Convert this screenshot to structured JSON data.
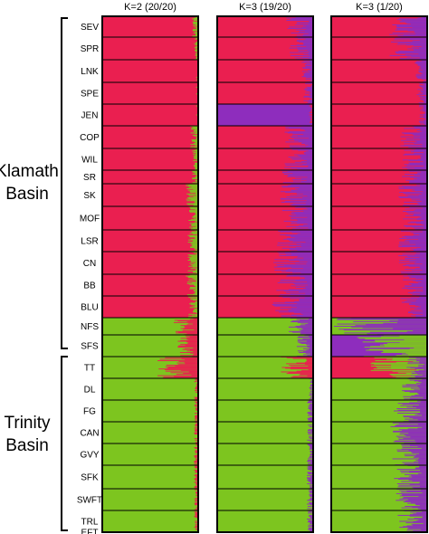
{
  "chart_data": {
    "type": "bar",
    "description_free": true,
    "colors": {
      "red": "#ea1f50",
      "green": "#7dc51f",
      "purple": "#8e2dbd",
      "grid": "#000000"
    },
    "panels": [
      {
        "title": "K=2 (20/20)",
        "k": 2
      },
      {
        "title": "K=3 (19/20)",
        "k": 3
      },
      {
        "title": "K=3 (1/20)",
        "k": 3
      }
    ],
    "basins": [
      {
        "lines": [
          "Klamath",
          "Basin"
        ],
        "populations": [
          "SEV",
          "SPR",
          "LNK",
          "SPE",
          "JEN",
          "COP",
          "WIL",
          "SR",
          "SK",
          "MOF",
          "LSR",
          "CN",
          "BB",
          "BLU",
          "NFS",
          "SFS"
        ]
      },
      {
        "lines": [
          "Trinity",
          "Basin"
        ],
        "populations": [
          "TT",
          "DL",
          "FG",
          "CAN",
          "GVY",
          "SFK",
          "SWFT",
          "TRL",
          "EFT"
        ]
      }
    ],
    "populations": [
      {
        "name": "SEV",
        "membership": [
          [
            0.97,
            0.03,
            0.0
          ],
          [
            0.86,
            0.0,
            0.14
          ],
          [
            0.82,
            0.0,
            0.18
          ]
        ]
      },
      {
        "name": "SPR",
        "membership": [
          [
            0.98,
            0.02,
            0.0
          ],
          [
            0.88,
            0.0,
            0.12
          ],
          [
            0.82,
            0.0,
            0.18
          ]
        ]
      },
      {
        "name": "LNK",
        "membership": [
          [
            0.99,
            0.01,
            0.0
          ],
          [
            0.94,
            0.0,
            0.06
          ],
          [
            0.94,
            0.0,
            0.06
          ]
        ]
      },
      {
        "name": "SPE",
        "membership": [
          [
            0.99,
            0.01,
            0.0
          ],
          [
            0.95,
            0.0,
            0.05
          ],
          [
            0.95,
            0.0,
            0.05
          ]
        ]
      },
      {
        "name": "JEN",
        "membership": [
          [
            0.99,
            0.01,
            0.0
          ],
          [
            0.02,
            0.0,
            0.98
          ],
          [
            0.96,
            0.0,
            0.04
          ]
        ]
      },
      {
        "name": "COP",
        "membership": [
          [
            0.96,
            0.04,
            0.0
          ],
          [
            0.86,
            0.0,
            0.14
          ],
          [
            0.86,
            0.0,
            0.14
          ]
        ]
      },
      {
        "name": "WIL",
        "membership": [
          [
            0.97,
            0.03,
            0.0
          ],
          [
            0.85,
            0.0,
            0.15
          ],
          [
            0.88,
            0.0,
            0.12
          ]
        ]
      },
      {
        "name": "SR",
        "membership": [
          [
            0.97,
            0.03,
            0.0
          ],
          [
            0.85,
            0.0,
            0.15
          ],
          [
            0.88,
            0.0,
            0.12
          ]
        ]
      },
      {
        "name": "SK",
        "membership": [
          [
            0.94,
            0.06,
            0.0
          ],
          [
            0.84,
            0.0,
            0.16
          ],
          [
            0.86,
            0.0,
            0.14
          ]
        ]
      },
      {
        "name": "MOF",
        "membership": [
          [
            0.95,
            0.05,
            0.0
          ],
          [
            0.85,
            0.0,
            0.15
          ],
          [
            0.88,
            0.0,
            0.12
          ]
        ]
      },
      {
        "name": "LSR",
        "membership": [
          [
            0.95,
            0.05,
            0.0
          ],
          [
            0.82,
            0.0,
            0.18
          ],
          [
            0.86,
            0.0,
            0.14
          ]
        ]
      },
      {
        "name": "CN",
        "membership": [
          [
            0.95,
            0.05,
            0.0
          ],
          [
            0.8,
            0.0,
            0.2
          ],
          [
            0.86,
            0.0,
            0.14
          ]
        ]
      },
      {
        "name": "BB",
        "membership": [
          [
            0.94,
            0.06,
            0.0
          ],
          [
            0.82,
            0.0,
            0.18
          ],
          [
            0.88,
            0.0,
            0.12
          ]
        ]
      },
      {
        "name": "BLU",
        "membership": [
          [
            0.95,
            0.05,
            0.0
          ],
          [
            0.8,
            0.0,
            0.2
          ],
          [
            0.86,
            0.0,
            0.14
          ]
        ]
      },
      {
        "name": "NFS",
        "membership": [
          [
            0.12,
            0.88,
            0.0
          ],
          [
            0.0,
            0.88,
            0.12
          ],
          [
            0.0,
            0.55,
            0.45
          ]
        ]
      },
      {
        "name": "SFS",
        "membership": [
          [
            0.1,
            0.9,
            0.0
          ],
          [
            0.0,
            0.92,
            0.08
          ],
          [
            0.0,
            0.35,
            0.65
          ]
        ]
      },
      {
        "name": "TT",
        "membership": [
          [
            0.2,
            0.8,
            0.0
          ],
          [
            0.16,
            0.84,
            0.0
          ],
          [
            0.6,
            0.3,
            0.1
          ]
        ]
      },
      {
        "name": "DL",
        "membership": [
          [
            0.02,
            0.98,
            0.0
          ],
          [
            0.0,
            0.98,
            0.02
          ],
          [
            0.0,
            0.88,
            0.12
          ]
        ]
      },
      {
        "name": "FG",
        "membership": [
          [
            0.02,
            0.98,
            0.0
          ],
          [
            0.0,
            0.97,
            0.03
          ],
          [
            0.0,
            0.84,
            0.16
          ]
        ]
      },
      {
        "name": "CAN",
        "membership": [
          [
            0.02,
            0.98,
            0.0
          ],
          [
            0.0,
            0.97,
            0.03
          ],
          [
            0.0,
            0.82,
            0.18
          ]
        ]
      },
      {
        "name": "GVY",
        "membership": [
          [
            0.02,
            0.98,
            0.0
          ],
          [
            0.0,
            0.97,
            0.03
          ],
          [
            0.0,
            0.82,
            0.18
          ]
        ]
      },
      {
        "name": "SFK",
        "membership": [
          [
            0.02,
            0.98,
            0.0
          ],
          [
            0.0,
            0.97,
            0.03
          ],
          [
            0.0,
            0.84,
            0.16
          ]
        ]
      },
      {
        "name": "SWFT",
        "membership": [
          [
            0.02,
            0.98,
            0.0
          ],
          [
            0.0,
            0.97,
            0.03
          ],
          [
            0.0,
            0.85,
            0.15
          ]
        ]
      },
      {
        "name": "TRL",
        "membership": [
          [
            0.02,
            0.98,
            0.0
          ],
          [
            0.0,
            0.97,
            0.03
          ],
          [
            0.0,
            0.86,
            0.14
          ]
        ]
      },
      {
        "name": "EFT",
        "membership": [
          [
            0.02,
            0.98,
            0.0
          ],
          [
            0.0,
            0.97,
            0.03
          ],
          [
            0.0,
            0.86,
            0.14
          ]
        ]
      }
    ]
  }
}
